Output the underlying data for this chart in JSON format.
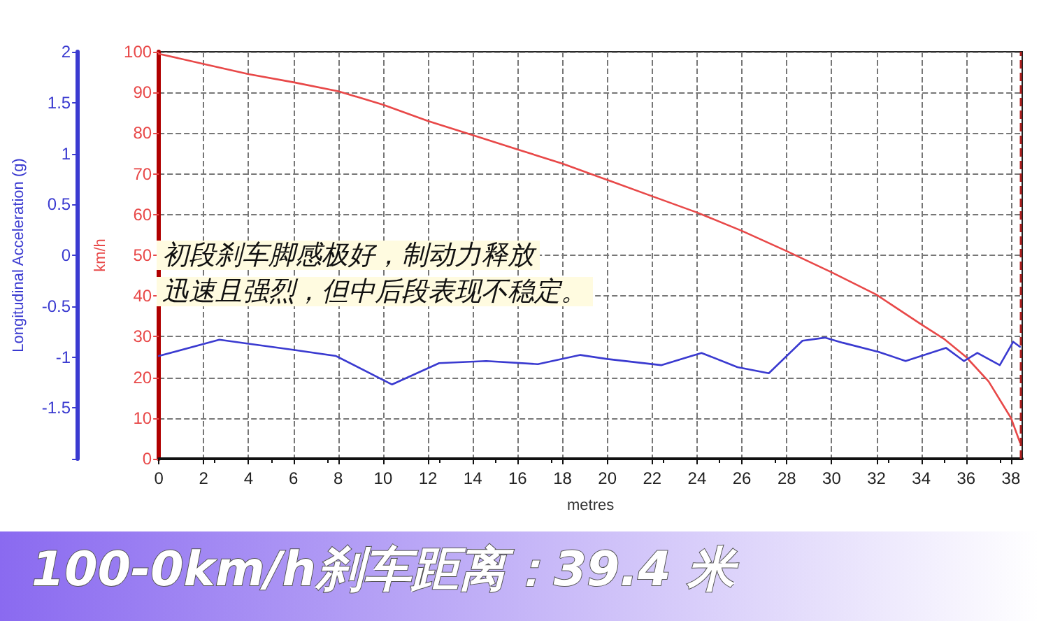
{
  "chart_data": {
    "type": "line",
    "xlabel": "metres",
    "ylabel": "km/h",
    "y2label": "Longitudinal Acceleration (g)",
    "annotations": [
      "初段刹车脚感极好，制动力释放",
      "迅速且强烈，但中后段表现不稳定。",
      "100-0km/h刹车距离：39.4 米"
    ],
    "series": [
      {
        "color": "#3a3ad0",
        "axis": "y2",
        "x": [
          0,
          2.7,
          4,
          6,
          7.9,
          10.4,
          12.5,
          14.6,
          16.9,
          18.8,
          20,
          22.4,
          24.2,
          25.8,
          27.2,
          28.7,
          29.7,
          30.5,
          32.1,
          33.3,
          35.1,
          35.9,
          36.5,
          37.5,
          38.1,
          38.4
        ],
        "values": [
          -0.99,
          -0.83,
          -0.87,
          -0.93,
          -0.99,
          -1.27,
          -1.06,
          -1.04,
          -1.07,
          -0.98,
          -1.02,
          -1.08,
          -0.96,
          -1.1,
          -1.16,
          -0.84,
          -0.81,
          -0.86,
          -0.95,
          -1.04,
          -0.91,
          -1.04,
          -0.96,
          -1.08,
          -0.85,
          -0.9
        ]
      },
      {
        "color": "#e84848",
        "axis": "y",
        "x": [
          0,
          2,
          4,
          6,
          8,
          10,
          12,
          14,
          16,
          18,
          20,
          22,
          24,
          26,
          28,
          30,
          32,
          34,
          35,
          36,
          37,
          38,
          38.4
        ],
        "values": [
          99.5,
          97,
          94.5,
          92.5,
          90.3,
          87,
          83,
          79.5,
          76,
          72.5,
          68.5,
          64.5,
          60.5,
          56,
          51,
          45.8,
          40.3,
          33,
          29.5,
          25,
          19,
          10,
          4
        ]
      }
    ],
    "xlim": [
      0,
      38.5
    ],
    "xticks": [
      0,
      2,
      4,
      6,
      8,
      10,
      12,
      14,
      16,
      18,
      20,
      22,
      24,
      26,
      28,
      30,
      32,
      34,
      36,
      38
    ],
    "ylim": [
      0,
      100
    ],
    "yticks": [
      0,
      10,
      20,
      30,
      40,
      50,
      60,
      70,
      80,
      90,
      100
    ],
    "y2lim": [
      -2,
      2
    ],
    "y2ticks": [
      {
        "value": -2,
        "label": null
      },
      -1.5,
      -1,
      -0.5,
      0,
      0.5,
      1,
      1.5,
      2
    ],
    "ref_lines": [
      {
        "axis": "x",
        "value": 38.4,
        "color": "#b02020",
        "line_style": "dashed"
      }
    ],
    "grid": true,
    "marker": "none"
  }
}
